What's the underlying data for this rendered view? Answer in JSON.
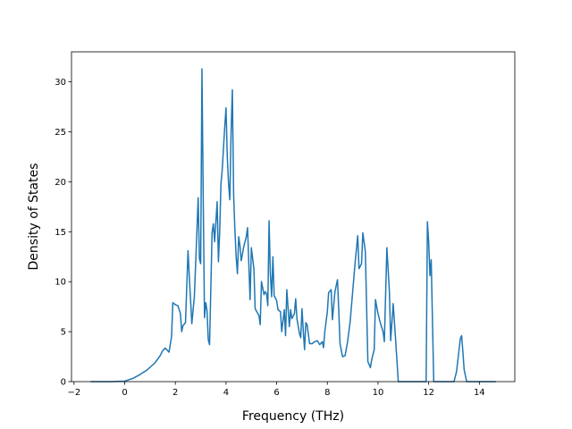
{
  "chart_data": {
    "type": "line",
    "title": "",
    "xlabel": "Frequency (THz)",
    "ylabel": "Density of States",
    "xlim": [
      -2.1,
      15.4
    ],
    "ylim": [
      0,
      33
    ],
    "xticks": [
      -2,
      0,
      2,
      4,
      6,
      8,
      10,
      12,
      14
    ],
    "yticks": [
      0,
      5,
      10,
      15,
      20,
      25,
      30
    ],
    "grid": false,
    "legend": "none",
    "series": [
      {
        "color": "#1f77b4",
        "points": [
          [
            -1.35,
            0
          ],
          [
            -0.5,
            0
          ],
          [
            0.0,
            0.05
          ],
          [
            0.3,
            0.3
          ],
          [
            0.6,
            0.7
          ],
          [
            0.9,
            1.2
          ],
          [
            1.2,
            1.9
          ],
          [
            1.4,
            2.6
          ],
          [
            1.5,
            3.1
          ],
          [
            1.6,
            3.35
          ],
          [
            1.75,
            2.95
          ],
          [
            1.85,
            4.5
          ],
          [
            1.9,
            7.9
          ],
          [
            2.0,
            7.7
          ],
          [
            2.1,
            7.6
          ],
          [
            2.2,
            6.8
          ],
          [
            2.25,
            5.0
          ],
          [
            2.3,
            5.6
          ],
          [
            2.4,
            5.9
          ],
          [
            2.5,
            13.1
          ],
          [
            2.55,
            10.5
          ],
          [
            2.6,
            8.2
          ],
          [
            2.65,
            5.8
          ],
          [
            2.75,
            8.5
          ],
          [
            2.85,
            15.0
          ],
          [
            2.9,
            18.4
          ],
          [
            2.95,
            12.3
          ],
          [
            3.0,
            11.8
          ],
          [
            3.05,
            31.3
          ],
          [
            3.1,
            18.5
          ],
          [
            3.15,
            6.4
          ],
          [
            3.2,
            7.9
          ],
          [
            3.25,
            7.1
          ],
          [
            3.3,
            4.2
          ],
          [
            3.35,
            3.7
          ],
          [
            3.4,
            9.3
          ],
          [
            3.45,
            14.9
          ],
          [
            3.5,
            15.8
          ],
          [
            3.55,
            14.0
          ],
          [
            3.6,
            16.0
          ],
          [
            3.65,
            18.0
          ],
          [
            3.7,
            12.0
          ],
          [
            3.75,
            15.0
          ],
          [
            3.8,
            19.8
          ],
          [
            3.85,
            21.2
          ],
          [
            3.9,
            23.4
          ],
          [
            3.95,
            25.5
          ],
          [
            4.0,
            27.4
          ],
          [
            4.05,
            22.5
          ],
          [
            4.1,
            19.8
          ],
          [
            4.15,
            18.2
          ],
          [
            4.2,
            25.0
          ],
          [
            4.25,
            29.2
          ],
          [
            4.3,
            18.8
          ],
          [
            4.35,
            15.2
          ],
          [
            4.4,
            12.5
          ],
          [
            4.45,
            10.8
          ],
          [
            4.5,
            14.5
          ],
          [
            4.55,
            13.6
          ],
          [
            4.6,
            12.1
          ],
          [
            4.7,
            13.5
          ],
          [
            4.8,
            14.5
          ],
          [
            4.85,
            15.4
          ],
          [
            4.95,
            8.2
          ],
          [
            5.0,
            13.4
          ],
          [
            5.1,
            11.3
          ],
          [
            5.15,
            7.3
          ],
          [
            5.3,
            6.6
          ],
          [
            5.35,
            5.7
          ],
          [
            5.4,
            10.0
          ],
          [
            5.5,
            8.7
          ],
          [
            5.55,
            9.0
          ],
          [
            5.6,
            8.8
          ],
          [
            5.65,
            7.6
          ],
          [
            5.7,
            16.1
          ],
          [
            5.75,
            10.8
          ],
          [
            5.8,
            8.5
          ],
          [
            5.85,
            12.5
          ],
          [
            5.9,
            8.6
          ],
          [
            6.0,
            8.1
          ],
          [
            6.05,
            7.2
          ],
          [
            6.15,
            7.0
          ],
          [
            6.2,
            5.0
          ],
          [
            6.3,
            7.2
          ],
          [
            6.35,
            4.6
          ],
          [
            6.4,
            9.2
          ],
          [
            6.5,
            5.5
          ],
          [
            6.55,
            7.2
          ],
          [
            6.6,
            6.3
          ],
          [
            6.7,
            6.8
          ],
          [
            6.75,
            8.3
          ],
          [
            6.8,
            6.3
          ],
          [
            6.9,
            4.8
          ],
          [
            6.95,
            4.4
          ],
          [
            7.0,
            7.3
          ],
          [
            7.05,
            5.1
          ],
          [
            7.1,
            3.2
          ],
          [
            7.15,
            5.9
          ],
          [
            7.2,
            5.7
          ],
          [
            7.3,
            3.8
          ],
          [
            7.4,
            3.8
          ],
          [
            7.5,
            4.0
          ],
          [
            7.6,
            4.1
          ],
          [
            7.7,
            3.7
          ],
          [
            7.8,
            4.0
          ],
          [
            7.85,
            3.4
          ],
          [
            7.9,
            5.0
          ],
          [
            8.0,
            7.0
          ],
          [
            8.05,
            8.9
          ],
          [
            8.15,
            9.2
          ],
          [
            8.2,
            6.2
          ],
          [
            8.3,
            9.0
          ],
          [
            8.4,
            10.2
          ],
          [
            8.45,
            7.2
          ],
          [
            8.5,
            3.8
          ],
          [
            8.6,
            2.5
          ],
          [
            8.7,
            2.6
          ],
          [
            8.8,
            4.0
          ],
          [
            8.9,
            6.0
          ],
          [
            9.0,
            9.0
          ],
          [
            9.1,
            12.0
          ],
          [
            9.2,
            14.6
          ],
          [
            9.25,
            11.3
          ],
          [
            9.35,
            11.8
          ],
          [
            9.4,
            14.9
          ],
          [
            9.5,
            13.0
          ],
          [
            9.55,
            7.5
          ],
          [
            9.6,
            2.0
          ],
          [
            9.7,
            1.4
          ],
          [
            9.75,
            2.2
          ],
          [
            9.85,
            3.2
          ],
          [
            9.9,
            8.2
          ],
          [
            10.0,
            6.8
          ],
          [
            10.1,
            5.8
          ],
          [
            10.2,
            5.0
          ],
          [
            10.25,
            4.0
          ],
          [
            10.35,
            13.4
          ],
          [
            10.45,
            9.0
          ],
          [
            10.5,
            4.1
          ],
          [
            10.6,
            7.8
          ],
          [
            10.7,
            4.0
          ],
          [
            10.8,
            0
          ],
          [
            11.0,
            0
          ],
          [
            11.5,
            0
          ],
          [
            11.9,
            0
          ],
          [
            11.95,
            16.0
          ],
          [
            12.0,
            14.0
          ],
          [
            12.05,
            10.6
          ],
          [
            12.1,
            12.2
          ],
          [
            12.15,
            6.0
          ],
          [
            12.2,
            0
          ],
          [
            12.6,
            0
          ],
          [
            13.0,
            0
          ],
          [
            13.1,
            1.0
          ],
          [
            13.2,
            3.2
          ],
          [
            13.25,
            4.3
          ],
          [
            13.3,
            4.6
          ],
          [
            13.35,
            3.0
          ],
          [
            13.4,
            1.2
          ],
          [
            13.5,
            0
          ],
          [
            14.0,
            0
          ],
          [
            14.65,
            0
          ]
        ]
      }
    ]
  }
}
